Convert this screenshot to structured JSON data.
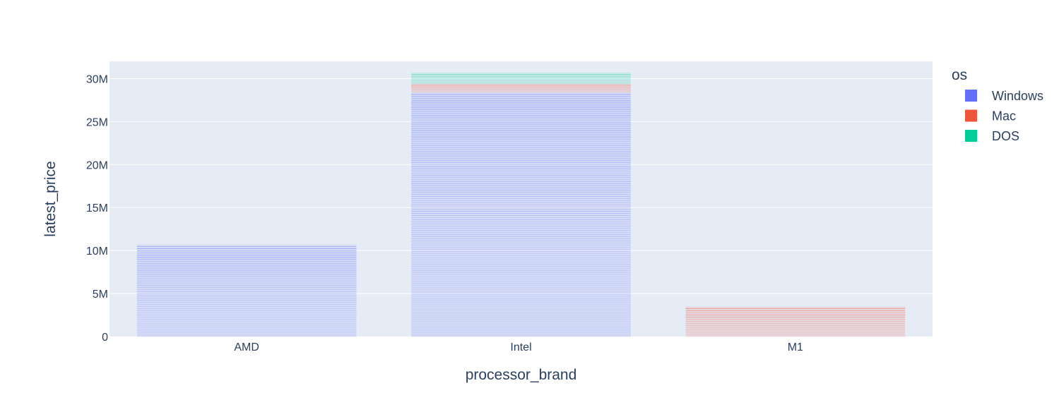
{
  "chart_data": {
    "type": "bar",
    "barmode": "stack",
    "title": "",
    "xlabel": "processor_brand",
    "ylabel": "latest_price",
    "categories": [
      "AMD",
      "Intel",
      "M1"
    ],
    "ylim": [
      0,
      32000000
    ],
    "yticks": [
      0,
      5000000,
      10000000,
      15000000,
      20000000,
      25000000,
      30000000
    ],
    "ytick_labels": [
      "0",
      "5M",
      "10M",
      "15M",
      "20M",
      "25M",
      "30M"
    ],
    "grid": true,
    "legend_title": "os",
    "legend_position": "top-right",
    "series": [
      {
        "name": "Windows",
        "color": "#636efa",
        "values": [
          10700000,
          28400000,
          0
        ]
      },
      {
        "name": "Mac",
        "color": "#ef553b",
        "values": [
          0,
          1000000,
          3500000
        ]
      },
      {
        "name": "DOS",
        "color": "#00cc96",
        "values": [
          0,
          1300000,
          0
        ]
      }
    ]
  }
}
